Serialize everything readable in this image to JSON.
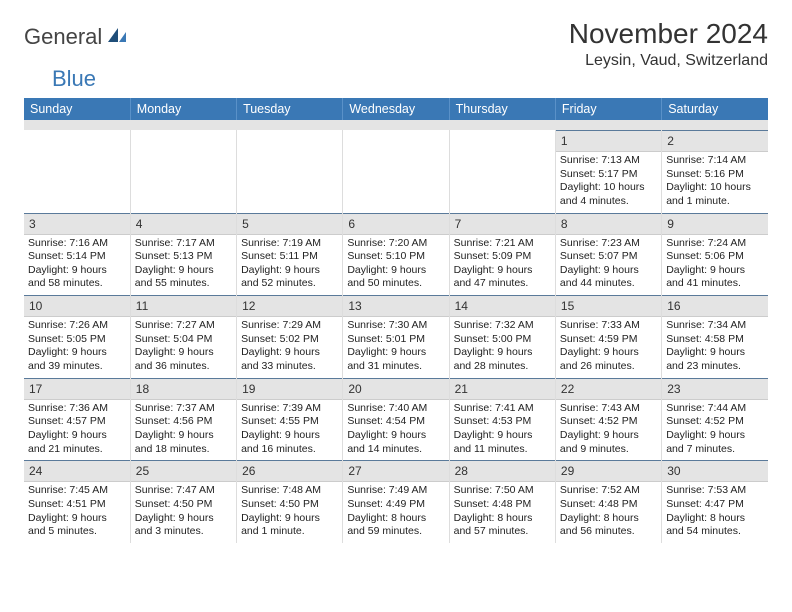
{
  "logo": {
    "part1": "General",
    "part2": "Blue"
  },
  "title": "November 2024",
  "location": "Leysin, Vaud, Switzerland",
  "colors": {
    "header_bg": "#3a78b5",
    "header_text": "#ffffff",
    "daynum_bg": "#e4e4e4",
    "border_top": "#5a7a9a"
  },
  "weekdays": [
    "Sunday",
    "Monday",
    "Tuesday",
    "Wednesday",
    "Thursday",
    "Friday",
    "Saturday"
  ],
  "weeks": [
    [
      null,
      null,
      null,
      null,
      null,
      {
        "n": "1",
        "sr": "7:13 AM",
        "ss": "5:17 PM",
        "dl": "10 hours and 4 minutes."
      },
      {
        "n": "2",
        "sr": "7:14 AM",
        "ss": "5:16 PM",
        "dl": "10 hours and 1 minute."
      }
    ],
    [
      {
        "n": "3",
        "sr": "7:16 AM",
        "ss": "5:14 PM",
        "dl": "9 hours and 58 minutes."
      },
      {
        "n": "4",
        "sr": "7:17 AM",
        "ss": "5:13 PM",
        "dl": "9 hours and 55 minutes."
      },
      {
        "n": "5",
        "sr": "7:19 AM",
        "ss": "5:11 PM",
        "dl": "9 hours and 52 minutes."
      },
      {
        "n": "6",
        "sr": "7:20 AM",
        "ss": "5:10 PM",
        "dl": "9 hours and 50 minutes."
      },
      {
        "n": "7",
        "sr": "7:21 AM",
        "ss": "5:09 PM",
        "dl": "9 hours and 47 minutes."
      },
      {
        "n": "8",
        "sr": "7:23 AM",
        "ss": "5:07 PM",
        "dl": "9 hours and 44 minutes."
      },
      {
        "n": "9",
        "sr": "7:24 AM",
        "ss": "5:06 PM",
        "dl": "9 hours and 41 minutes."
      }
    ],
    [
      {
        "n": "10",
        "sr": "7:26 AM",
        "ss": "5:05 PM",
        "dl": "9 hours and 39 minutes."
      },
      {
        "n": "11",
        "sr": "7:27 AM",
        "ss": "5:04 PM",
        "dl": "9 hours and 36 minutes."
      },
      {
        "n": "12",
        "sr": "7:29 AM",
        "ss": "5:02 PM",
        "dl": "9 hours and 33 minutes."
      },
      {
        "n": "13",
        "sr": "7:30 AM",
        "ss": "5:01 PM",
        "dl": "9 hours and 31 minutes."
      },
      {
        "n": "14",
        "sr": "7:32 AM",
        "ss": "5:00 PM",
        "dl": "9 hours and 28 minutes."
      },
      {
        "n": "15",
        "sr": "7:33 AM",
        "ss": "4:59 PM",
        "dl": "9 hours and 26 minutes."
      },
      {
        "n": "16",
        "sr": "7:34 AM",
        "ss": "4:58 PM",
        "dl": "9 hours and 23 minutes."
      }
    ],
    [
      {
        "n": "17",
        "sr": "7:36 AM",
        "ss": "4:57 PM",
        "dl": "9 hours and 21 minutes."
      },
      {
        "n": "18",
        "sr": "7:37 AM",
        "ss": "4:56 PM",
        "dl": "9 hours and 18 minutes."
      },
      {
        "n": "19",
        "sr": "7:39 AM",
        "ss": "4:55 PM",
        "dl": "9 hours and 16 minutes."
      },
      {
        "n": "20",
        "sr": "7:40 AM",
        "ss": "4:54 PM",
        "dl": "9 hours and 14 minutes."
      },
      {
        "n": "21",
        "sr": "7:41 AM",
        "ss": "4:53 PM",
        "dl": "9 hours and 11 minutes."
      },
      {
        "n": "22",
        "sr": "7:43 AM",
        "ss": "4:52 PM",
        "dl": "9 hours and 9 minutes."
      },
      {
        "n": "23",
        "sr": "7:44 AM",
        "ss": "4:52 PM",
        "dl": "9 hours and 7 minutes."
      }
    ],
    [
      {
        "n": "24",
        "sr": "7:45 AM",
        "ss": "4:51 PM",
        "dl": "9 hours and 5 minutes."
      },
      {
        "n": "25",
        "sr": "7:47 AM",
        "ss": "4:50 PM",
        "dl": "9 hours and 3 minutes."
      },
      {
        "n": "26",
        "sr": "7:48 AM",
        "ss": "4:50 PM",
        "dl": "9 hours and 1 minute."
      },
      {
        "n": "27",
        "sr": "7:49 AM",
        "ss": "4:49 PM",
        "dl": "8 hours and 59 minutes."
      },
      {
        "n": "28",
        "sr": "7:50 AM",
        "ss": "4:48 PM",
        "dl": "8 hours and 57 minutes."
      },
      {
        "n": "29",
        "sr": "7:52 AM",
        "ss": "4:48 PM",
        "dl": "8 hours and 56 minutes."
      },
      {
        "n": "30",
        "sr": "7:53 AM",
        "ss": "4:47 PM",
        "dl": "8 hours and 54 minutes."
      }
    ]
  ],
  "labels": {
    "sunrise": "Sunrise:",
    "sunset": "Sunset:",
    "daylight": "Daylight:"
  }
}
